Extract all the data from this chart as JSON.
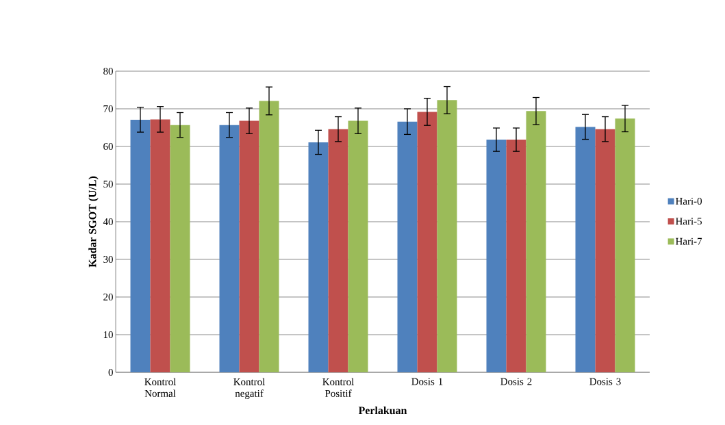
{
  "chart_data": {
    "type": "bar",
    "xlabel": "Perlakuan",
    "ylabel": "Kadar SGOT (U/L)",
    "categories": [
      "Kontrol Normal",
      "Kontrol negatif",
      "Kontrol Positif",
      "Dosis 1",
      "Dosis 2",
      "Dosis 3"
    ],
    "series": [
      {
        "name": "Hari-0",
        "color": "#4f81bd",
        "values": [
          67.1,
          65.7,
          61.1,
          66.6,
          61.8,
          65.2
        ],
        "errors": [
          3.3,
          3.3,
          3.2,
          3.4,
          3.1,
          3.3
        ]
      },
      {
        "name": "Hari-5",
        "color": "#c0504d",
        "values": [
          67.2,
          66.8,
          64.6,
          69.2,
          61.8,
          64.6
        ],
        "errors": [
          3.4,
          3.4,
          3.3,
          3.6,
          3.1,
          3.3
        ]
      },
      {
        "name": "Hari-7",
        "color": "#9bbb59",
        "values": [
          65.7,
          72.1,
          66.8,
          72.3,
          69.4,
          67.4
        ],
        "errors": [
          3.3,
          3.7,
          3.4,
          3.6,
          3.6,
          3.5
        ]
      }
    ],
    "ylim": [
      0,
      80
    ],
    "yticks": [
      0,
      10,
      20,
      30,
      40,
      50,
      60,
      70,
      80
    ],
    "grid": "y",
    "legend": "right"
  }
}
